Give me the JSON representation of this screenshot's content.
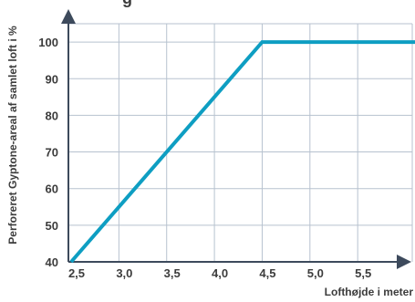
{
  "chart_data": {
    "type": "line",
    "title_fragment": "g",
    "xlabel": "Lofthøjde i meter",
    "ylabel": "Perforeret Gyptone-areal af samlet loft i %",
    "x_ticks": [
      "2,5",
      "3,0",
      "3,5",
      "4,0",
      "4,5",
      "5,0",
      "5,5"
    ],
    "y_ticks": [
      "40",
      "50",
      "60",
      "70",
      "80",
      "90",
      "100"
    ],
    "x_tick_values": [
      2.5,
      3.0,
      3.5,
      4.0,
      4.5,
      5.0,
      5.5
    ],
    "y_tick_values": [
      40,
      50,
      60,
      70,
      80,
      90,
      100
    ],
    "xlim": [
      2.5,
      6.1
    ],
    "ylim": [
      40,
      108
    ],
    "grid": true,
    "series": [
      {
        "x": [
          2.5,
          4.5,
          6.1
        ],
        "y": [
          40,
          100,
          100
        ],
        "color": "#0e9ec2"
      }
    ],
    "colors": {
      "grid": "#b7c2cf",
      "axis": "#3d4a5c",
      "line": "#0e9ec2",
      "text": "#3c3c3c"
    }
  }
}
